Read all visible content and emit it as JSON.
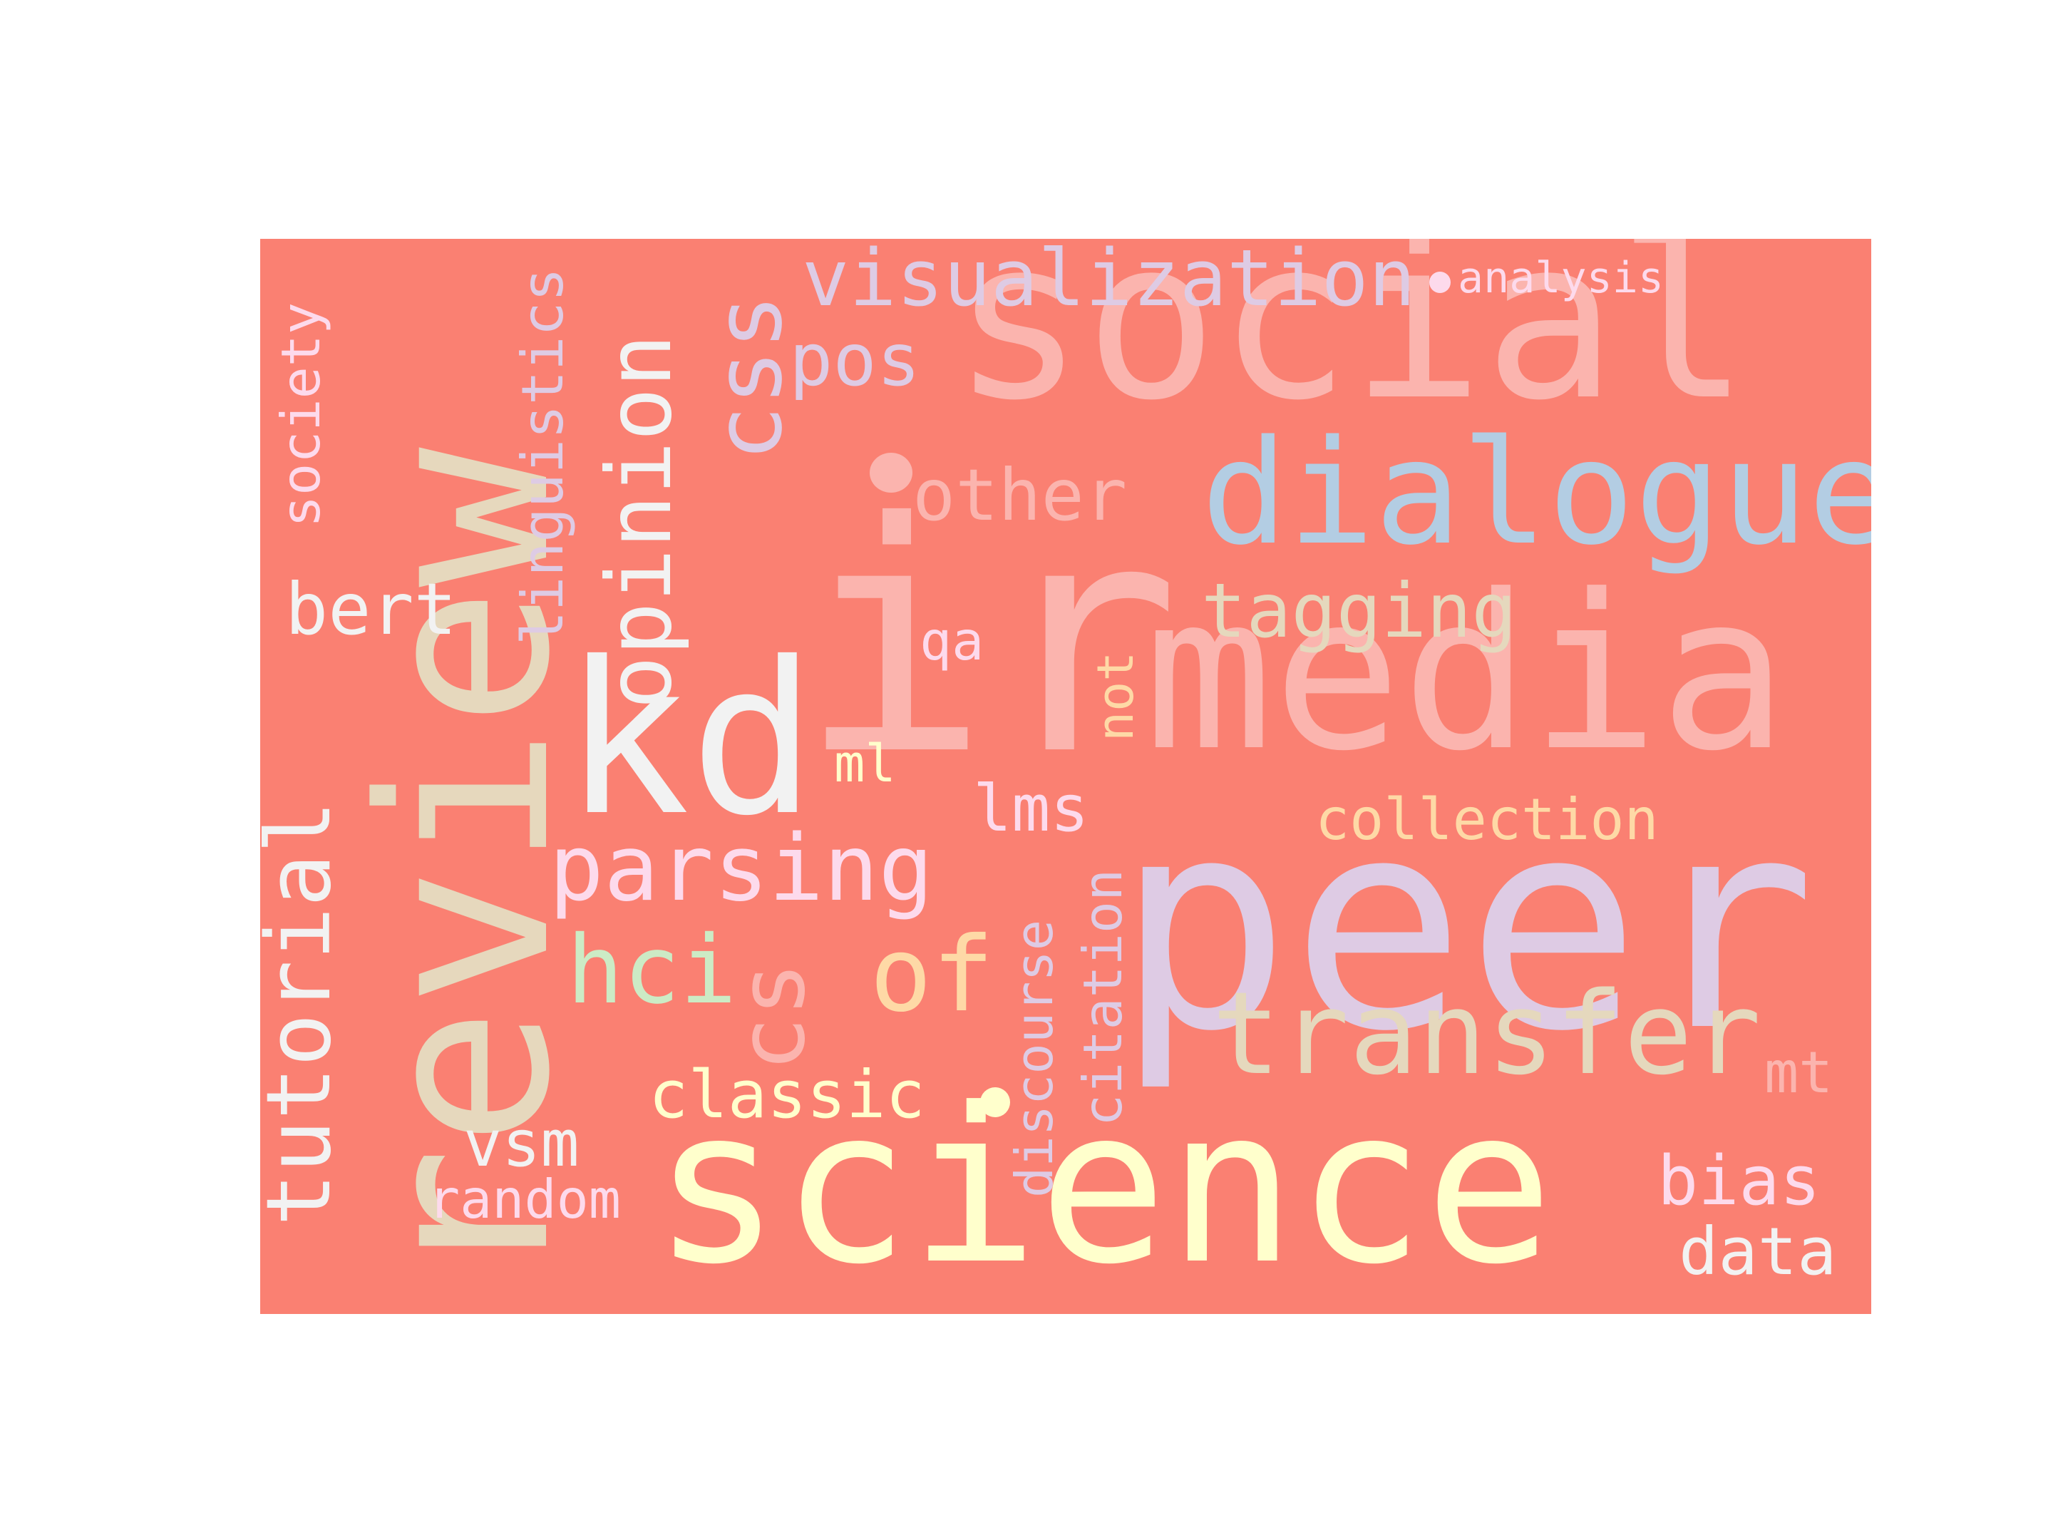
{
  "background_color": "#fa8072",
  "words": [
    {
      "id": "review",
      "text": "review",
      "color": "#e6d8bd"
    },
    {
      "id": "ir",
      "text": "ir",
      "color": "#fbb4ae"
    },
    {
      "id": "peer",
      "text": "peer",
      "color": "#decbe4"
    },
    {
      "id": "science",
      "text": "science",
      "color": "#ffffcc"
    },
    {
      "id": "social",
      "text": "social",
      "color": "#fbb4ae"
    },
    {
      "id": "media",
      "text": "media",
      "color": "#fbb4ae"
    },
    {
      "id": "dialogue",
      "text": "dialogue",
      "color": "#b3cde3"
    },
    {
      "id": "kd",
      "text": "kd",
      "color": "#f2f2f2"
    },
    {
      "id": "transfer",
      "text": "transfer",
      "color": "#e5d8bd"
    },
    {
      "id": "opinion",
      "text": "opinion",
      "color": "#f2f2f2"
    },
    {
      "id": "css",
      "text": "css",
      "color": "#decbe4"
    },
    {
      "id": "cs",
      "text": "cs",
      "color": "#fbb4ae"
    },
    {
      "id": "tutorial",
      "text": "tutorial",
      "color": "#f2f2f2"
    },
    {
      "id": "parsing",
      "text": "parsing",
      "color": "#fddaec"
    },
    {
      "id": "of",
      "text": "of",
      "color": "#fed9a6"
    },
    {
      "id": "visualization",
      "text": "visualization",
      "color": "#decbe4"
    },
    {
      "id": "hci",
      "text": "hci",
      "color": "#ccebc5"
    },
    {
      "id": "tagging",
      "text": "tagging",
      "color": "#e5d8bd"
    },
    {
      "id": "other",
      "text": "other",
      "color": "#fbb4ae"
    },
    {
      "id": "pos",
      "text": "pos",
      "color": "#decbe4"
    },
    {
      "id": "bert",
      "text": "bert",
      "color": "#f2f2f2"
    },
    {
      "id": "linguistics",
      "text": "linguistics",
      "color": "#decbe4"
    },
    {
      "id": "society",
      "text": "society",
      "color": "#fddaec"
    },
    {
      "id": "classic",
      "text": "classic",
      "color": "#ffffcc"
    },
    {
      "id": "collection",
      "text": "collection",
      "color": "#fed9a6"
    },
    {
      "id": "bias",
      "text": "bias",
      "color": "#fddaec"
    },
    {
      "id": "data",
      "text": "data",
      "color": "#f2f2f2"
    },
    {
      "id": "vsm",
      "text": "vsm",
      "color": "#f2f2f2"
    },
    {
      "id": "random",
      "text": "random",
      "color": "#fddaec"
    },
    {
      "id": "lms",
      "text": "lms",
      "color": "#fddaec"
    },
    {
      "id": "citation",
      "text": "citation",
      "color": "#decbe4"
    },
    {
      "id": "discourse",
      "text": "discourse",
      "color": "#decbe4"
    },
    {
      "id": "not",
      "text": "not",
      "color": "#fed9a6"
    },
    {
      "id": "qa",
      "text": "qa",
      "color": "#fddaec"
    },
    {
      "id": "ml",
      "text": "ml",
      "color": "#ffffcc"
    },
    {
      "id": "mt",
      "text": "mt",
      "color": "#fbb4ae"
    },
    {
      "id": "analysis",
      "text": "analysis",
      "color": "#fddaec"
    }
  ]
}
